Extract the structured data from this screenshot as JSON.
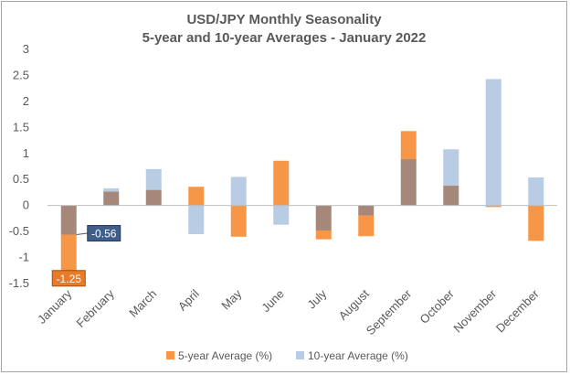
{
  "chart_data": {
    "type": "bar",
    "title": "USD/JPY Monthly Seasonality",
    "subtitle": "5-year and 10-year Averages - January 2022",
    "categories": [
      "January",
      "February",
      "March",
      "April",
      "May",
      "June",
      "July",
      "August",
      "September",
      "October",
      "November",
      "December"
    ],
    "series": [
      {
        "name": "5-year Average (%)",
        "color": "#f79646",
        "values": [
          -1.25,
          0.27,
          0.3,
          0.36,
          -0.6,
          0.86,
          -0.65,
          -0.59,
          1.43,
          0.38,
          -0.03,
          -0.68
        ]
      },
      {
        "name": "10-year Average (%)",
        "color": "#b8cce4",
        "values": [
          -0.56,
          0.33,
          0.7,
          -0.55,
          0.55,
          -0.37,
          -0.48,
          -0.19,
          0.89,
          1.08,
          2.43,
          0.54
        ]
      }
    ],
    "overlap_color": "#a5887a",
    "ylim": [
      -1.5,
      3
    ],
    "yticks": [
      "-1.5",
      "-1",
      "-0.5",
      "0",
      "0.5",
      "1",
      "1.5",
      "2",
      "2.5",
      "3"
    ],
    "xlabel": "",
    "ylabel": "",
    "grid": false,
    "legend": "bottom",
    "annotations": [
      {
        "category": "January",
        "series": "10-year Average (%)",
        "text": "-0.56",
        "bg": "#3f5f8a",
        "border": "#1f3864"
      },
      {
        "category": "January",
        "series": "5-year Average (%)",
        "text": "-1.25",
        "bg": "#e87b2a",
        "border": "#a34d10"
      }
    ]
  }
}
